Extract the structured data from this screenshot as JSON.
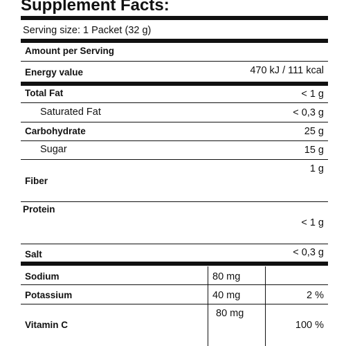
{
  "title": "Supplement Facts:",
  "serving_size": "Serving size: 1 Packet (32 g)",
  "amount_per_serving": "Amount per Serving",
  "rows": {
    "energy": {
      "label": "Energy value",
      "value": "470 kJ / 111 kcal"
    },
    "total_fat": {
      "label": "Total Fat",
      "value": "< 1 g"
    },
    "saturated_fat": {
      "label": "Saturated Fat",
      "value": "< 0,3 g"
    },
    "carbohydrate": {
      "label": "Carbohydrate",
      "value": "25 g"
    },
    "sugar": {
      "label": "Sugar",
      "value": "15 g"
    },
    "fiber": {
      "label": "Fiber",
      "value": "1 g"
    },
    "protein": {
      "label": "Protein",
      "value": "< 1 g"
    },
    "salt": {
      "label": "Salt",
      "value": "< 0,3 g"
    }
  },
  "minerals": {
    "sodium": {
      "label": "Sodium",
      "amount": "80 mg",
      "dv": ""
    },
    "potassium": {
      "label": "Potassium",
      "amount": "40 mg",
      "dv": "2 %"
    },
    "vitamin_c": {
      "label": "Vitamin C",
      "amount": "80 mg",
      "dv": "100 %"
    }
  }
}
